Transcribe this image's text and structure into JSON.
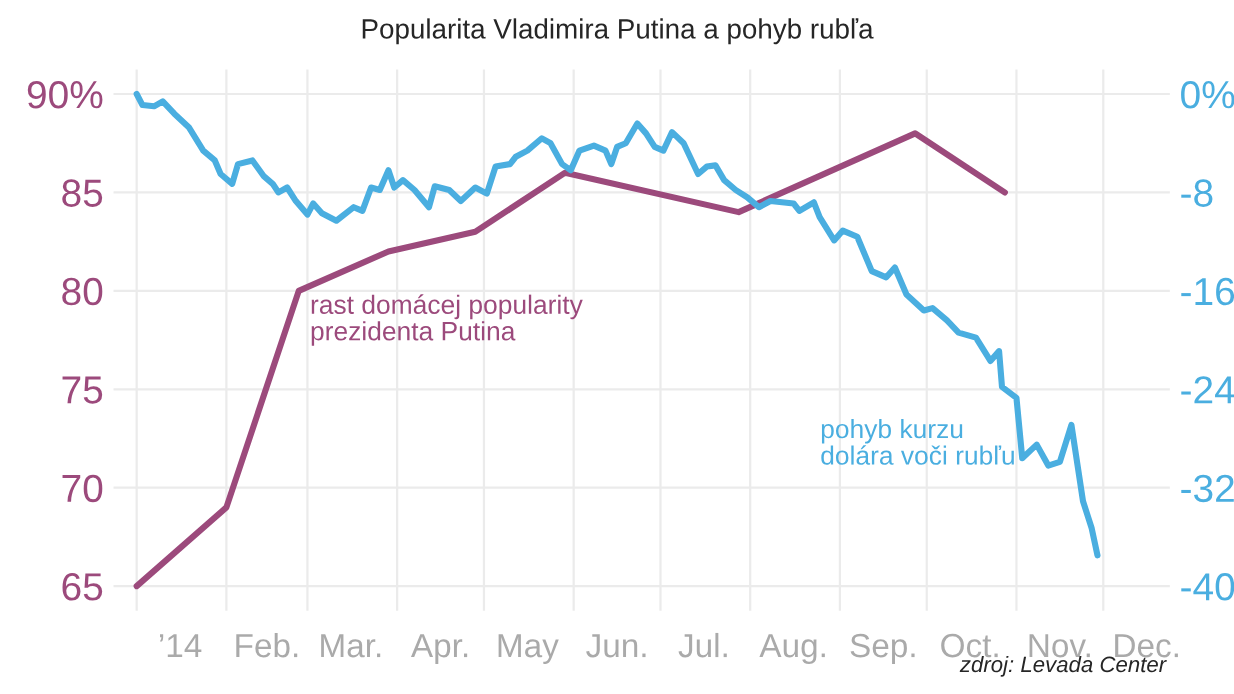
{
  "chart_data": {
    "type": "line",
    "title": "Popularita Vladimira Putina a pohyb rubľa",
    "xlim": [
      "2013-12-24",
      "2014-12-24"
    ],
    "xticks": [
      {
        "value": "2014-01-01",
        "label": null
      },
      {
        "value": "2014-02-01",
        "label": null
      },
      {
        "value": "2014-03-01",
        "label": null
      },
      {
        "value": "2014-04-01",
        "label": null
      },
      {
        "value": "2014-05-01",
        "label": null
      },
      {
        "value": "2014-06-01",
        "label": null
      },
      {
        "value": "2014-07-01",
        "label": null
      },
      {
        "value": "2014-08-01",
        "label": null
      },
      {
        "value": "2014-09-01",
        "label": null
      },
      {
        "value": "2014-10-01",
        "label": null
      },
      {
        "value": "2014-11-01",
        "label": null
      },
      {
        "value": "2014-12-01",
        "label": null
      },
      {
        "value": "2014-01-16",
        "label": "’14"
      },
      {
        "value": "2014-02-15",
        "label": "Feb."
      },
      {
        "value": "2014-03-16",
        "label": "Mar."
      },
      {
        "value": "2014-04-16",
        "label": "Apr."
      },
      {
        "value": "2014-05-16",
        "label": "May"
      },
      {
        "value": "2014-06-16",
        "label": "Jun."
      },
      {
        "value": "2014-07-16",
        "label": "Jul."
      },
      {
        "value": "2014-08-16",
        "label": "Aug."
      },
      {
        "value": "2014-09-16",
        "label": "Sep."
      },
      {
        "value": "2014-10-16",
        "label": "Oct."
      },
      {
        "value": "2014-11-16",
        "label": "Nov."
      },
      {
        "value": "2014-12-16",
        "label": "Dec."
      }
    ],
    "ylim": [
      63.75,
      91.25
    ],
    "yticks": [
      65,
      70,
      75,
      80,
      85,
      {
        "value": 90,
        "label": "90%"
      }
    ],
    "y2lim": [
      -42,
      2
    ],
    "y2ticks": [
      -40,
      -32,
      -24,
      -16,
      -8,
      {
        "value": 0,
        "label": "0%"
      }
    ],
    "grid": true,
    "series": [
      {
        "color": "#9c4a7c",
        "x": [
          "2014-01-01",
          "2014-02-01",
          "2014-02-26",
          "2014-03-29",
          "2014-04-28",
          "2014-05-29",
          "2014-07-28",
          "2014-09-27",
          "2014-10-28"
        ],
        "values": [
          65,
          69,
          80,
          82,
          83,
          86,
          84,
          88,
          85
        ]
      },
      {
        "color": "#4aaee0",
        "axis": "y2",
        "x": [
          "2014-01-01",
          "2014-01-03",
          "2014-01-07",
          "2014-01-10",
          "2014-01-14",
          "2014-01-19",
          "2014-01-24",
          "2014-01-28",
          "2014-01-30",
          "2014-02-03",
          "2014-02-05",
          "2014-02-10",
          "2014-02-14",
          "2014-02-17",
          "2014-02-19",
          "2014-02-22",
          "2014-02-25",
          "2014-03-01",
          "2014-03-03",
          "2014-03-06",
          "2014-03-11",
          "2014-03-17",
          "2014-03-20",
          "2014-03-23",
          "2014-03-26",
          "2014-03-29",
          "2014-03-31",
          "2014-04-03",
          "2014-04-07",
          "2014-04-12",
          "2014-04-14",
          "2014-04-19",
          "2014-04-23",
          "2014-04-28",
          "2014-05-02",
          "2014-05-05",
          "2014-05-10",
          "2014-05-12",
          "2014-05-16",
          "2014-05-21",
          "2014-05-24",
          "2014-05-28",
          "2014-05-31",
          "2014-06-03",
          "2014-06-08",
          "2014-06-12",
          "2014-06-14",
          "2014-06-16",
          "2014-06-19",
          "2014-06-23",
          "2014-06-26",
          "2014-06-29",
          "2014-07-02",
          "2014-07-05",
          "2014-07-09",
          "2014-07-14",
          "2014-07-17",
          "2014-07-20",
          "2014-07-23",
          "2014-07-27",
          "2014-07-31",
          "2014-08-04",
          "2014-08-08",
          "2014-08-16",
          "2014-08-18",
          "2014-08-23",
          "2014-08-25",
          "2014-08-30",
          "2014-09-02",
          "2014-09-07",
          "2014-09-12",
          "2014-09-17",
          "2014-09-20",
          "2014-09-24",
          "2014-09-30",
          "2014-10-03",
          "2014-10-08",
          "2014-10-12",
          "2014-10-18",
          "2014-10-23",
          "2014-10-26",
          "2014-10-27",
          "2014-11-01",
          "2014-11-03",
          "2014-11-08",
          "2014-11-12",
          "2014-11-16",
          "2014-11-20",
          "2014-11-24",
          "2014-11-27",
          "2014-11-29"
        ],
        "values": [
          0,
          -0.9,
          -1.0,
          -0.6,
          -1.6,
          -2.7,
          -4.6,
          -5.4,
          -6.5,
          -7.3,
          -5.7,
          -5.4,
          -6.7,
          -7.3,
          -8.0,
          -7.6,
          -8.7,
          -9.8,
          -8.9,
          -9.7,
          -10.3,
          -9.2,
          -9.5,
          -7.6,
          -7.8,
          -6.2,
          -7.6,
          -7.0,
          -7.8,
          -9.2,
          -7.5,
          -7.8,
          -8.7,
          -7.6,
          -8.1,
          -5.9,
          -5.7,
          -5.1,
          -4.6,
          -3.6,
          -4.0,
          -5.7,
          -6.2,
          -4.6,
          -4.2,
          -4.6,
          -5.7,
          -4.3,
          -4.0,
          -2.4,
          -3.2,
          -4.3,
          -4.6,
          -3.1,
          -4.0,
          -6.5,
          -5.9,
          -5.8,
          -7.0,
          -7.8,
          -8.4,
          -9.2,
          -8.7,
          -8.9,
          -9.5,
          -8.8,
          -10.0,
          -11.9,
          -11.1,
          -11.6,
          -14.4,
          -14.9,
          -14.1,
          -16.3,
          -17.6,
          -17.4,
          -18.4,
          -19.4,
          -19.8,
          -21.7,
          -20.9,
          -23.8,
          -24.7,
          -29.6,
          -28.5,
          -30.2,
          -29.9,
          -26.9,
          -33.1,
          -35.3,
          -37.5
        ]
      }
    ],
    "annotations": [
      "rast domácej popularity\nprezidenta Putina",
      "pohyb kurzu\ndolára voči rubľu",
      "zdroj: Levada Center"
    ]
  }
}
